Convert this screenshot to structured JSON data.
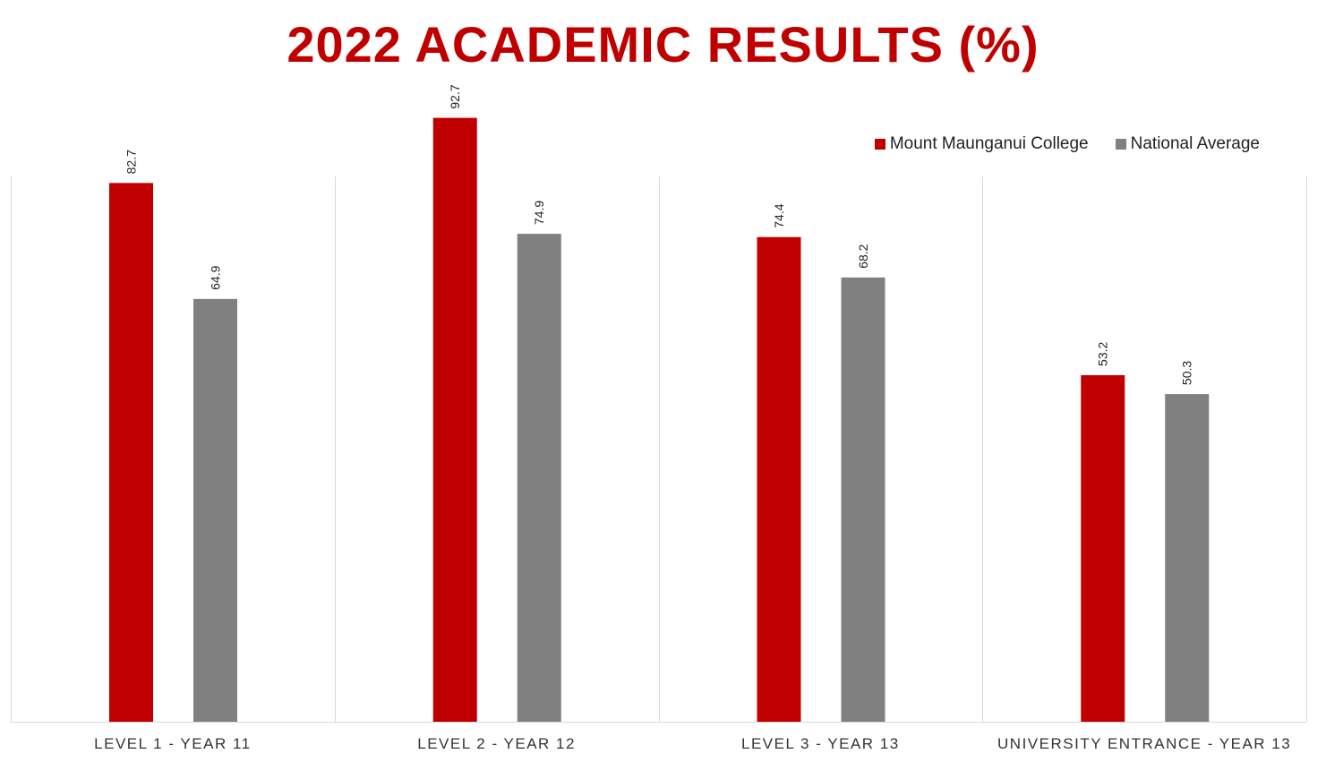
{
  "chart_data": {
    "type": "bar",
    "title": "2022 ACADEMIC RESULTS (%)",
    "categories": [
      "LEVEL 1 - YEAR 11",
      "LEVEL 2 - YEAR 12",
      "LEVEL 3 - YEAR 13",
      "UNIVERSITY ENTRANCE - YEAR 13"
    ],
    "series": [
      {
        "name": "Mount Maunganui College",
        "color": "#c00000",
        "values": [
          82.7,
          92.7,
          74.4,
          53.2
        ]
      },
      {
        "name": "National Average",
        "color": "#808080",
        "values": [
          64.9,
          74.9,
          68.2,
          50.3
        ]
      }
    ],
    "ylim": [
      0,
      100
    ],
    "grid": false,
    "legend_position": "top-right",
    "value_labels": "rotated-vertical"
  }
}
